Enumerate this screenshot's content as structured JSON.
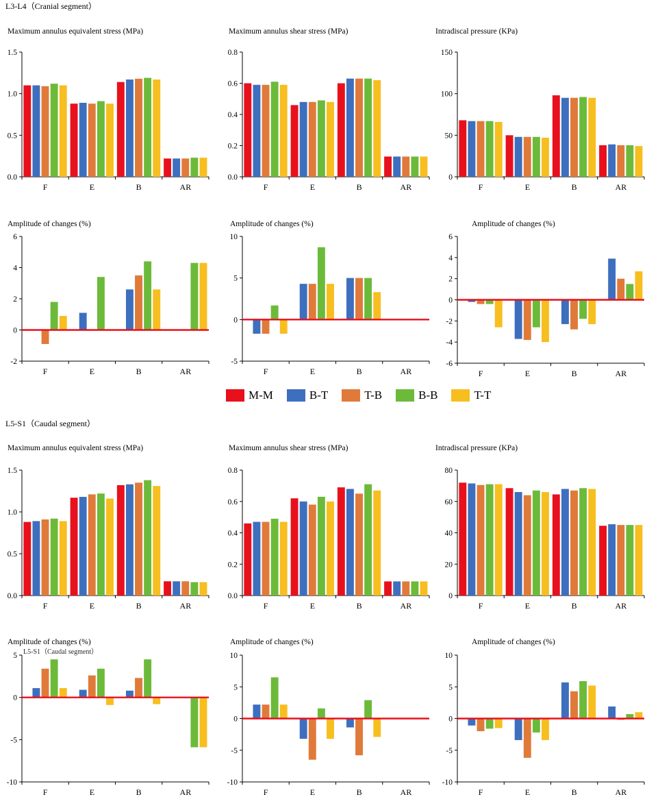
{
  "legend": {
    "items": [
      {
        "label": "M-M",
        "color": "#e8101c"
      },
      {
        "label": "B-T",
        "color": "#3e6fbe"
      },
      {
        "label": "T-B",
        "color": "#e07a3a"
      },
      {
        "label": "B-B",
        "color": "#6cba3a"
      },
      {
        "label": "T-T",
        "color": "#f7be20"
      }
    ]
  },
  "segments": {
    "cranial": {
      "title": "L3-L4（Cranial segment）"
    },
    "caudal": {
      "title": "L5-S1（Caudal segment）",
      "overlap_text": "L5-S1（Caudal segment）"
    }
  },
  "chart_data": [
    {
      "id": "c1",
      "type": "bar",
      "title": "Maximum annulus equivalent stress (MPa)",
      "categories": [
        "F",
        "E",
        "B",
        "AR"
      ],
      "ylim": [
        0,
        1.5
      ],
      "yticks": [
        0,
        0.5,
        1.0,
        1.5
      ],
      "ytick_labels": [
        "0.0",
        "0.5",
        "1.0",
        "1.5"
      ],
      "zero_line": false,
      "series": [
        {
          "name": "M-M",
          "values": [
            1.1,
            0.88,
            1.14,
            0.22
          ]
        },
        {
          "name": "B-T",
          "values": [
            1.1,
            0.89,
            1.17,
            0.22
          ]
        },
        {
          "name": "T-B",
          "values": [
            1.09,
            0.88,
            1.18,
            0.22
          ]
        },
        {
          "name": "B-B",
          "values": [
            1.12,
            0.91,
            1.19,
            0.23
          ]
        },
        {
          "name": "T-T",
          "values": [
            1.1,
            0.88,
            1.17,
            0.23
          ]
        }
      ]
    },
    {
      "id": "c2",
      "type": "bar",
      "title": "Maximum annulus shear stress (MPa)",
      "categories": [
        "F",
        "E",
        "B",
        "AR"
      ],
      "ylim": [
        0,
        0.8
      ],
      "yticks": [
        0,
        0.2,
        0.4,
        0.6,
        0.8
      ],
      "ytick_labels": [
        "0.0",
        "0.2",
        "0.4",
        "0.6",
        "0.8"
      ],
      "zero_line": false,
      "series": [
        {
          "name": "M-M",
          "values": [
            0.6,
            0.46,
            0.6,
            0.13
          ]
        },
        {
          "name": "B-T",
          "values": [
            0.59,
            0.48,
            0.63,
            0.13
          ]
        },
        {
          "name": "T-B",
          "values": [
            0.59,
            0.48,
            0.63,
            0.13
          ]
        },
        {
          "name": "B-B",
          "values": [
            0.61,
            0.49,
            0.63,
            0.13
          ]
        },
        {
          "name": "T-T",
          "values": [
            0.59,
            0.48,
            0.62,
            0.13
          ]
        }
      ]
    },
    {
      "id": "c3",
      "type": "bar",
      "title": "Intradiscal pressure (KPa)",
      "categories": [
        "F",
        "E",
        "B",
        "AR"
      ],
      "ylim": [
        0,
        150
      ],
      "yticks": [
        0,
        50,
        100,
        150
      ],
      "ytick_labels": [
        "0",
        "50",
        "100",
        "150"
      ],
      "zero_line": false,
      "series": [
        {
          "name": "M-M",
          "values": [
            68,
            50,
            98,
            38
          ]
        },
        {
          "name": "B-T",
          "values": [
            67,
            48,
            95,
            39
          ]
        },
        {
          "name": "T-B",
          "values": [
            67,
            48,
            95,
            38
          ]
        },
        {
          "name": "B-B",
          "values": [
            67,
            48,
            96,
            38
          ]
        },
        {
          "name": "T-T",
          "values": [
            66,
            47,
            95,
            37
          ]
        }
      ]
    },
    {
      "id": "c4",
      "type": "bar",
      "title": "Amplitude of changes (%)",
      "categories": [
        "F",
        "E",
        "B",
        "AR"
      ],
      "ylim": [
        -2,
        6
      ],
      "yticks": [
        -2,
        0,
        2,
        4,
        6
      ],
      "ytick_labels": [
        "-2",
        "0",
        "2",
        "4",
        "6"
      ],
      "zero_line": true,
      "series": [
        {
          "name": "M-M",
          "values": [
            0,
            0,
            0,
            0
          ]
        },
        {
          "name": "B-T",
          "values": [
            0,
            1.1,
            2.6,
            0
          ]
        },
        {
          "name": "T-B",
          "values": [
            -0.9,
            0,
            3.5,
            0
          ]
        },
        {
          "name": "B-B",
          "values": [
            1.8,
            3.4,
            4.4,
            4.3
          ]
        },
        {
          "name": "T-T",
          "values": [
            0.9,
            0,
            2.6,
            4.3
          ]
        }
      ]
    },
    {
      "id": "c5",
      "type": "bar",
      "title": "Amplitude of changes (%)",
      "categories": [
        "F",
        "E",
        "B",
        "AR"
      ],
      "ylim": [
        -5,
        10
      ],
      "yticks": [
        -5,
        0,
        5,
        10
      ],
      "ytick_labels": [
        "-5",
        "0",
        "5",
        "10"
      ],
      "zero_line": true,
      "series": [
        {
          "name": "M-M",
          "values": [
            0,
            0,
            0,
            0
          ]
        },
        {
          "name": "B-T",
          "values": [
            -1.7,
            4.3,
            5.0,
            0
          ]
        },
        {
          "name": "T-B",
          "values": [
            -1.7,
            4.3,
            5.0,
            0
          ]
        },
        {
          "name": "B-B",
          "values": [
            1.7,
            8.7,
            5.0,
            0
          ]
        },
        {
          "name": "T-T",
          "values": [
            -1.7,
            4.3,
            3.3,
            0
          ]
        }
      ]
    },
    {
      "id": "c6",
      "type": "bar",
      "title": "Amplitude of changes (%)",
      "categories": [
        "F",
        "E",
        "B",
        "AR"
      ],
      "ylim": [
        -6,
        6
      ],
      "yticks": [
        -6,
        -4,
        -2,
        0,
        2,
        4,
        6
      ],
      "ytick_labels": [
        "-6",
        "-4",
        "-2",
        "0",
        "2",
        "4",
        "6"
      ],
      "zero_line": true,
      "series": [
        {
          "name": "M-M",
          "values": [
            0,
            0,
            0,
            0
          ]
        },
        {
          "name": "B-T",
          "values": [
            -0.2,
            -3.7,
            -2.3,
            3.9
          ]
        },
        {
          "name": "T-B",
          "values": [
            -0.4,
            -3.8,
            -2.8,
            2.0
          ]
        },
        {
          "name": "B-B",
          "values": [
            -0.4,
            -2.6,
            -1.8,
            1.5
          ]
        },
        {
          "name": "T-T",
          "values": [
            -2.6,
            -4.0,
            -2.3,
            2.7
          ]
        }
      ]
    },
    {
      "id": "c7",
      "type": "bar",
      "title": "Maximum annulus equivalent stress (MPa)",
      "categories": [
        "F",
        "E",
        "B",
        "AR"
      ],
      "ylim": [
        0,
        1.5
      ],
      "yticks": [
        0,
        0.5,
        1.0,
        1.5
      ],
      "ytick_labels": [
        "0.0",
        "0.5",
        "1.0",
        "1.5"
      ],
      "zero_line": false,
      "series": [
        {
          "name": "M-M",
          "values": [
            0.88,
            1.17,
            1.32,
            0.17
          ]
        },
        {
          "name": "B-T",
          "values": [
            0.89,
            1.18,
            1.33,
            0.17
          ]
        },
        {
          "name": "T-B",
          "values": [
            0.91,
            1.21,
            1.35,
            0.17
          ]
        },
        {
          "name": "B-B",
          "values": [
            0.92,
            1.22,
            1.38,
            0.16
          ]
        },
        {
          "name": "T-T",
          "values": [
            0.89,
            1.16,
            1.31,
            0.16
          ]
        }
      ]
    },
    {
      "id": "c8",
      "type": "bar",
      "title": "Maximum annulus shear stress (MPa)",
      "categories": [
        "F",
        "E",
        "B",
        "AR"
      ],
      "ylim": [
        0,
        0.8
      ],
      "yticks": [
        0,
        0.2,
        0.4,
        0.6,
        0.8
      ],
      "ytick_labels": [
        "0.0",
        "0.2",
        "0.4",
        "0.6",
        "0.8"
      ],
      "zero_line": false,
      "series": [
        {
          "name": "M-M",
          "values": [
            0.46,
            0.62,
            0.69,
            0.09
          ]
        },
        {
          "name": "B-T",
          "values": [
            0.47,
            0.6,
            0.68,
            0.09
          ]
        },
        {
          "name": "T-B",
          "values": [
            0.47,
            0.58,
            0.65,
            0.09
          ]
        },
        {
          "name": "B-B",
          "values": [
            0.49,
            0.63,
            0.71,
            0.09
          ]
        },
        {
          "name": "T-T",
          "values": [
            0.47,
            0.6,
            0.67,
            0.09
          ]
        }
      ]
    },
    {
      "id": "c9",
      "type": "bar",
      "title": "Intradiscal pressure (KPa)",
      "categories": [
        "F",
        "E",
        "B",
        "AR"
      ],
      "ylim": [
        0,
        80
      ],
      "yticks": [
        0,
        20,
        40,
        60,
        80
      ],
      "ytick_labels": [
        "0",
        "20",
        "40",
        "60",
        "80"
      ],
      "zero_line": false,
      "series": [
        {
          "name": "M-M",
          "values": [
            72,
            68.5,
            64.5,
            44.5
          ]
        },
        {
          "name": "B-T",
          "values": [
            71.5,
            66,
            68,
            45.5
          ]
        },
        {
          "name": "T-B",
          "values": [
            70.5,
            64,
            67,
            45
          ]
        },
        {
          "name": "B-B",
          "values": [
            71,
            67,
            68.5,
            45
          ]
        },
        {
          "name": "T-T",
          "values": [
            71,
            66,
            68,
            45
          ]
        }
      ]
    },
    {
      "id": "c10",
      "type": "bar",
      "title": "Amplitude of changes (%)",
      "categories": [
        "F",
        "E",
        "B",
        "AR"
      ],
      "ylim": [
        -10,
        5
      ],
      "yticks": [
        -10,
        -5,
        0,
        5
      ],
      "ytick_labels": [
        "-10",
        "-5",
        "0",
        "5"
      ],
      "zero_line": true,
      "series": [
        {
          "name": "M-M",
          "values": [
            0,
            0,
            0,
            0
          ]
        },
        {
          "name": "B-T",
          "values": [
            1.1,
            0.9,
            0.8,
            0
          ]
        },
        {
          "name": "T-B",
          "values": [
            3.4,
            2.6,
            2.3,
            0
          ]
        },
        {
          "name": "B-B",
          "values": [
            4.5,
            3.4,
            4.5,
            -5.9
          ]
        },
        {
          "name": "T-T",
          "values": [
            1.1,
            -0.9,
            -0.8,
            -5.9
          ]
        }
      ]
    },
    {
      "id": "c11",
      "type": "bar",
      "title": "Amplitude of changes (%)",
      "categories": [
        "F",
        "E",
        "B",
        "AR"
      ],
      "ylim": [
        -10,
        10
      ],
      "yticks": [
        -10,
        -5,
        0,
        5,
        10
      ],
      "ytick_labels": [
        "-10",
        "-5",
        "0",
        "5",
        "10"
      ],
      "zero_line": true,
      "series": [
        {
          "name": "M-M",
          "values": [
            0,
            0,
            0,
            0
          ]
        },
        {
          "name": "B-T",
          "values": [
            2.2,
            -3.2,
            -1.4,
            0
          ]
        },
        {
          "name": "T-B",
          "values": [
            2.2,
            -6.5,
            -5.8,
            0
          ]
        },
        {
          "name": "B-B",
          "values": [
            6.5,
            1.6,
            2.9,
            0
          ]
        },
        {
          "name": "T-T",
          "values": [
            2.2,
            -3.2,
            -2.9,
            0
          ]
        }
      ]
    },
    {
      "id": "c12",
      "type": "bar",
      "title": "Amplitude of changes (%)",
      "categories": [
        "F",
        "E",
        "B",
        "AR"
      ],
      "ylim": [
        -10,
        10
      ],
      "yticks": [
        -10,
        -5,
        0,
        5,
        10
      ],
      "ytick_labels": [
        "-10",
        "-5",
        "0",
        "5",
        "10"
      ],
      "zero_line": true,
      "series": [
        {
          "name": "M-M",
          "values": [
            0,
            0,
            0,
            0
          ]
        },
        {
          "name": "B-T",
          "values": [
            -1.1,
            -3.4,
            5.7,
            1.9
          ]
        },
        {
          "name": "T-B",
          "values": [
            -2.0,
            -6.2,
            4.3,
            -0.2
          ]
        },
        {
          "name": "B-B",
          "values": [
            -1.6,
            -2.2,
            5.9,
            0.7
          ]
        },
        {
          "name": "T-T",
          "values": [
            -1.5,
            -3.4,
            5.2,
            1.0
          ]
        }
      ]
    }
  ]
}
